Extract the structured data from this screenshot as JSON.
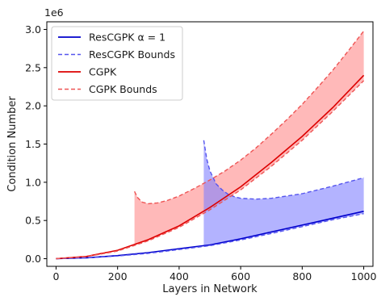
{
  "chart_data": {
    "type": "line",
    "title": "",
    "xlabel": "Layers in Network",
    "ylabel": "Condition Number",
    "y_offset_label": "1e6",
    "xlim": [
      -30,
      1030
    ],
    "ylim": [
      -0.1,
      3.1
    ],
    "x_ticks": [
      0,
      200,
      400,
      600,
      800,
      1000
    ],
    "x_tick_labels": [
      "0",
      "200",
      "400",
      "600",
      "800",
      "1000"
    ],
    "y_ticks": [
      0.0,
      0.5,
      1.0,
      1.5,
      2.0,
      2.5,
      3.0
    ],
    "y_tick_labels": [
      "0.0",
      "0.5",
      "1.0",
      "1.5",
      "2.0",
      "2.5",
      "3.0"
    ],
    "y_units": "×1e6",
    "grid": false,
    "legend_position": "top-left",
    "legend": [
      {
        "label": "ResCGPK α = 1",
        "style": "solid",
        "color": "#0000cc"
      },
      {
        "label": "ResCGPK Bounds",
        "style": "dashed",
        "color": "#5555ee"
      },
      {
        "label": "CGPK",
        "style": "solid",
        "color": "#dd0000"
      },
      {
        "label": "CGPK Bounds",
        "style": "dashed",
        "color": "#ee5555"
      }
    ],
    "series": [
      {
        "name": "ResCGPK α = 1",
        "color": "#0000cc",
        "style": "solid",
        "x": [
          0,
          100,
          200,
          300,
          400,
          500,
          600,
          700,
          800,
          900,
          1000
        ],
        "y": [
          0.0,
          0.012,
          0.04,
          0.08,
          0.13,
          0.18,
          0.26,
          0.35,
          0.44,
          0.53,
          0.62
        ]
      },
      {
        "name": "ResCGPK Bounds (lower)",
        "color": "#5555ee",
        "style": "dashed",
        "x": [
          0,
          100,
          200,
          300,
          400,
          480,
          500,
          600,
          700,
          800,
          900,
          1000
        ],
        "y": [
          0.0,
          0.01,
          0.035,
          0.07,
          0.12,
          0.16,
          0.17,
          0.245,
          0.33,
          0.42,
          0.51,
          0.59
        ]
      },
      {
        "name": "ResCGPK Bounds (upper)",
        "color": "#5555ee",
        "style": "dashed",
        "x": [
          480,
          490,
          500,
          520,
          540,
          560,
          580,
          600,
          650,
          700,
          800,
          900,
          1000
        ],
        "y": [
          1.55,
          1.3,
          1.15,
          0.98,
          0.9,
          0.84,
          0.81,
          0.79,
          0.78,
          0.79,
          0.85,
          0.95,
          1.06
        ]
      },
      {
        "name": "CGPK",
        "color": "#dd0000",
        "style": "solid",
        "x": [
          0,
          100,
          200,
          300,
          400,
          500,
          600,
          700,
          800,
          900,
          1000
        ],
        "y": [
          0.0,
          0.03,
          0.11,
          0.25,
          0.43,
          0.67,
          0.94,
          1.26,
          1.6,
          1.98,
          2.4
        ]
      },
      {
        "name": "CGPK Bounds (lower)",
        "color": "#ee5555",
        "style": "dashed",
        "x": [
          0,
          100,
          200,
          300,
          400,
          500,
          600,
          700,
          800,
          900,
          1000
        ],
        "y": [
          0.0,
          0.028,
          0.1,
          0.235,
          0.41,
          0.64,
          0.9,
          1.21,
          1.55,
          1.93,
          2.33
        ]
      },
      {
        "name": "CGPK Bounds (upper)",
        "color": "#ee5555",
        "style": "dashed",
        "x": [
          255,
          265,
          280,
          300,
          330,
          360,
          400,
          450,
          500,
          550,
          600,
          650,
          700,
          750,
          800,
          850,
          900,
          950,
          1000
        ],
        "y": [
          0.88,
          0.8,
          0.74,
          0.72,
          0.73,
          0.76,
          0.82,
          0.92,
          1.03,
          1.15,
          1.29,
          1.45,
          1.63,
          1.82,
          2.02,
          2.24,
          2.47,
          2.72,
          2.98
        ]
      }
    ],
    "fills": [
      {
        "between": [
          "CGPK Bounds (lower)",
          "CGPK Bounds (upper)"
        ],
        "color": "#ff8080",
        "opacity": 0.55
      },
      {
        "between": [
          "ResCGPK Bounds (lower)",
          "ResCGPK Bounds (upper)"
        ],
        "color": "#8080ff",
        "opacity": 0.6
      }
    ]
  }
}
